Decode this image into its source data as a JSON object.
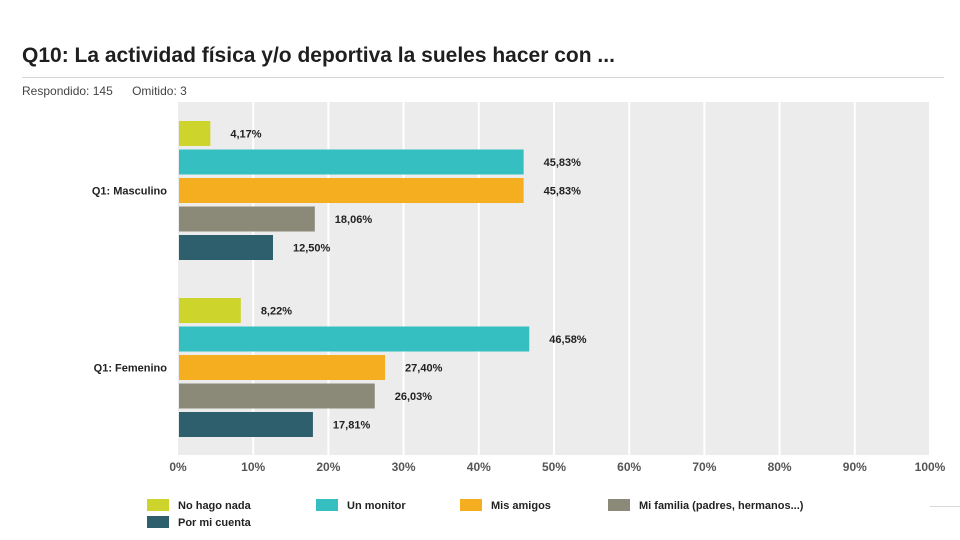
{
  "title": "Q10: La actividad física y/o deportiva la sueles hacer con ...",
  "meta": {
    "answered_label": "Respondido: 145",
    "skipped_label": "Omitido: 3"
  },
  "colors": {
    "plot_background": "#ececec",
    "gridline": "#ffffff",
    "text": "#222222"
  },
  "chart_data": {
    "type": "bar",
    "orientation": "horizontal",
    "categories": [
      "Q1: Masculino",
      "Q1: Femenino"
    ],
    "series": [
      {
        "name": "No hago nada",
        "color": "#cdd52c",
        "values": [
          4.17,
          8.22
        ],
        "labels": [
          "4,17%",
          "8,22%"
        ]
      },
      {
        "name": "Un monitor",
        "color": "#35bfc0",
        "values": [
          45.83,
          46.58
        ],
        "labels": [
          "45,83%",
          "46,58%"
        ]
      },
      {
        "name": "Mis amigos",
        "color": "#f5ae1f",
        "values": [
          45.83,
          27.4
        ],
        "labels": [
          "45,83%",
          "27,40%"
        ]
      },
      {
        "name": "Mi familia (padres, hermanos...)",
        "color": "#8b8a79",
        "values": [
          18.06,
          26.03
        ],
        "labels": [
          "18,06%",
          "26,03%"
        ]
      },
      {
        "name": "Por mi cuenta",
        "color": "#2d5f6c",
        "values": [
          12.5,
          17.81
        ],
        "labels": [
          "12,50%",
          "17,81%"
        ]
      }
    ],
    "xlim": [
      0,
      100
    ],
    "x_ticks": [
      "0%",
      "10%",
      "20%",
      "30%",
      "40%",
      "50%",
      "60%",
      "70%",
      "80%",
      "90%",
      "100%"
    ],
    "grid": true,
    "legend_position": "bottom"
  }
}
